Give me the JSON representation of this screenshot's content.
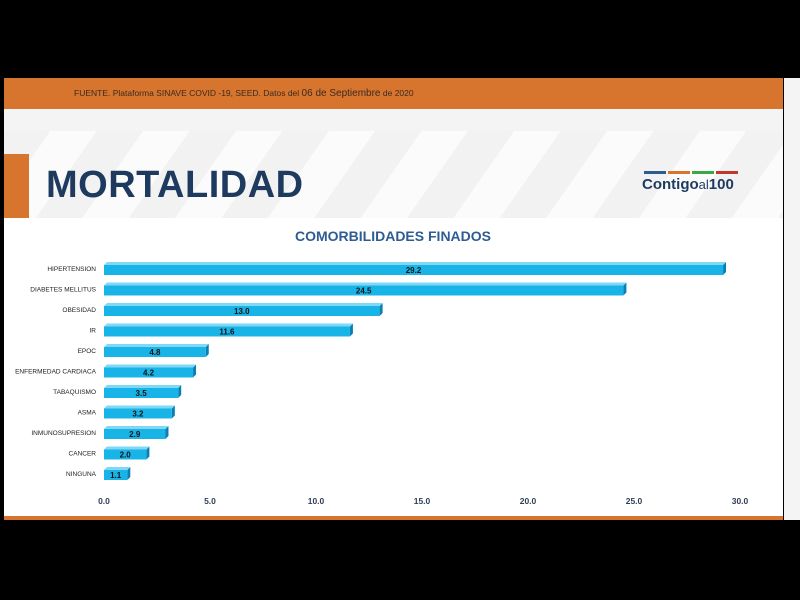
{
  "source": {
    "text": "FUENTE. Plataforma SINAVE COVID -19, SEED. Datos del",
    "date": "06 de Septiembre",
    "year": "de 2020"
  },
  "header": {
    "title": "MORTALIDAD"
  },
  "logo": {
    "main": "Contigo",
    "al": "al",
    "num": "100"
  },
  "colors": {
    "orange": "#d7742e",
    "navy": "#1e3a5f",
    "bar": "#18b4e8",
    "bar_shadow": "#0a7fb0",
    "bar_top": "#7fd8f5"
  },
  "chart_data": {
    "type": "bar",
    "orientation": "horizontal",
    "title": "COMORBILIDADES FINADOS",
    "categories": [
      "HIPERTENSION",
      "DIABETES MELLITUS",
      "OBESIDAD",
      "IR",
      "EPOC",
      "ENFERMEDAD CARDIACA",
      "TABAQUISMO",
      "ASMA",
      "INMUNOSUPRESION",
      "CANCER",
      "NINGUNA"
    ],
    "values": [
      29.2,
      24.5,
      13.0,
      11.6,
      4.8,
      4.2,
      3.5,
      3.2,
      2.9,
      2.0,
      1.1
    ],
    "value_labels": [
      "29.2",
      "24.5",
      "13.0",
      "11.6",
      "4.8",
      "4.2",
      "3.5",
      "3.2",
      "2.9",
      "2.0",
      "1.1"
    ],
    "xlim": [
      0,
      30
    ],
    "xticks": [
      "0.0",
      "5.0",
      "10.0",
      "15.0",
      "20.0",
      "25.0",
      "30.0"
    ],
    "xlabel": "",
    "ylabel": "",
    "grid": false
  }
}
